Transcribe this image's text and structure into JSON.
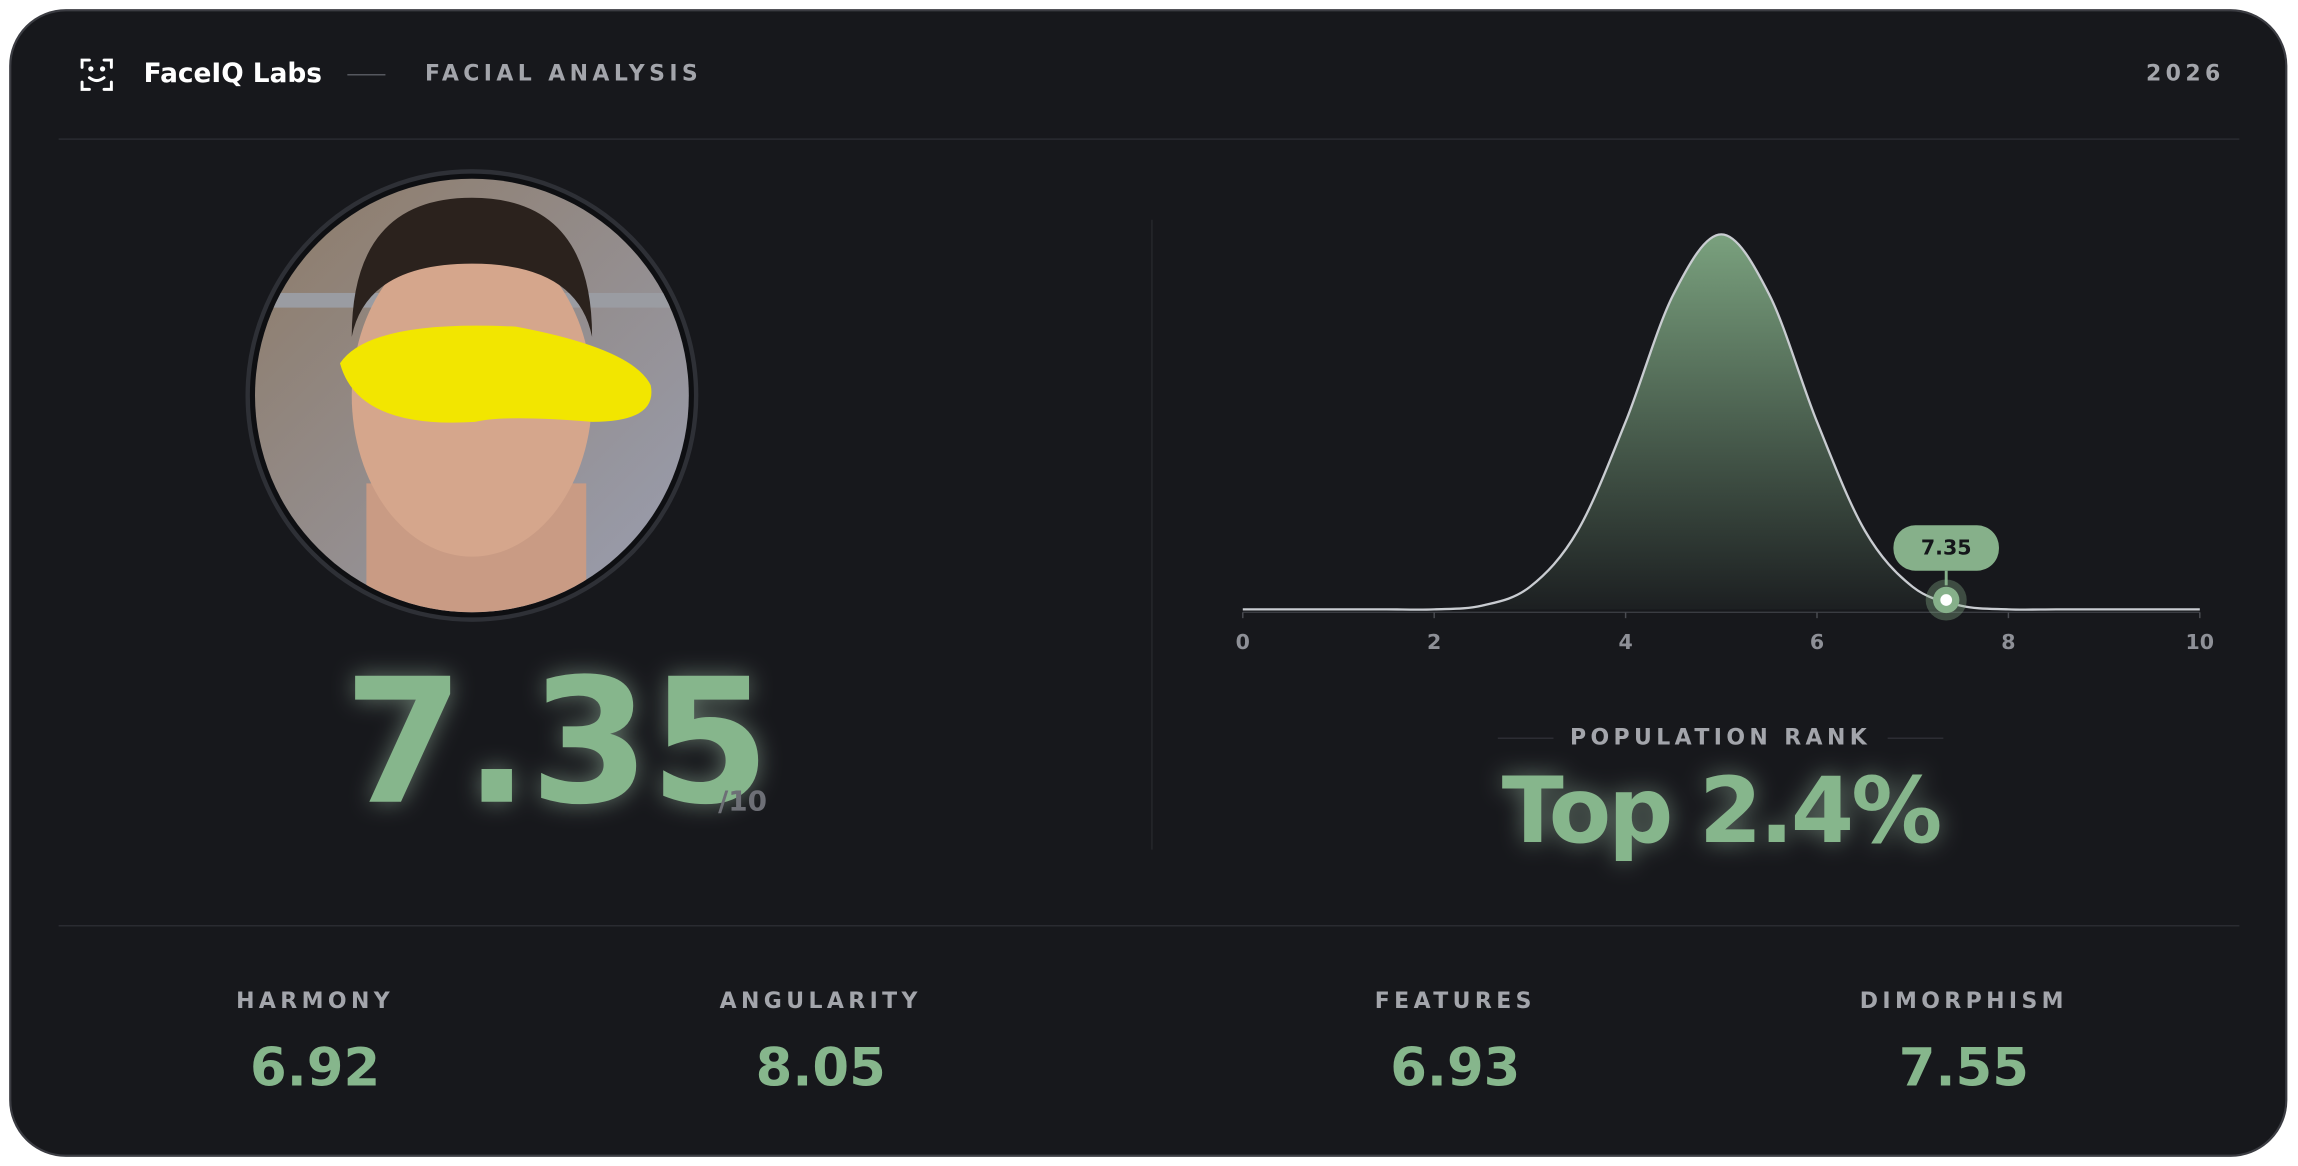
{
  "header": {
    "brand": "FaceIQ Labs",
    "section": "FACIAL ANALYSIS",
    "year": "2026"
  },
  "score": {
    "value": "7.35",
    "scale": "/10"
  },
  "distribution": {
    "type": "line",
    "x": [
      0,
      0.5,
      1,
      1.5,
      2,
      2.5,
      3,
      3.5,
      4,
      4.5,
      5,
      5.5,
      6,
      6.5,
      7,
      7.5,
      8,
      8.5,
      9,
      9.5,
      10
    ],
    "values": [
      0,
      0,
      0,
      0,
      0,
      0.01,
      0.06,
      0.21,
      0.5,
      0.84,
      1,
      0.84,
      0.5,
      0.21,
      0.06,
      0.01,
      0,
      0,
      0,
      0,
      0
    ],
    "xlim": [
      0,
      10
    ],
    "xticks": [
      0,
      2,
      4,
      6,
      8,
      10
    ],
    "ylim": [
      0,
      1
    ],
    "color": "#c9ccd1",
    "fill": "#7fa883",
    "marker": {
      "value": 7.35,
      "label": "7.35"
    }
  },
  "rank": {
    "label": "POPULATION RANK",
    "value": "Top 2.4%"
  },
  "metrics": [
    {
      "label": "HARMONY",
      "value": "6.92"
    },
    {
      "label": "ANGULARITY",
      "value": "8.05"
    },
    {
      "label": "FEATURES",
      "value": "6.93"
    },
    {
      "label": "DIMORPHISM",
      "value": "7.55"
    }
  ]
}
